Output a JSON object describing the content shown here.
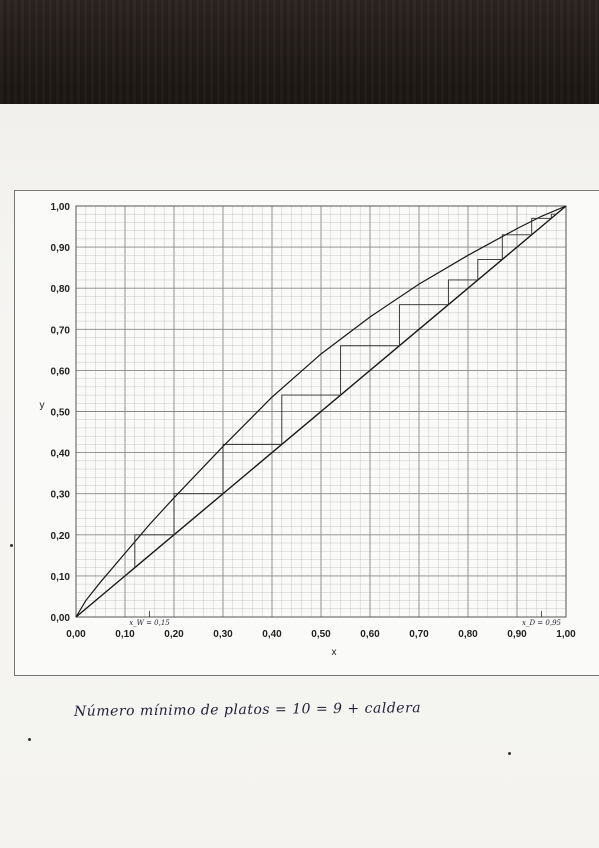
{
  "chart_data": {
    "type": "line",
    "xlabel": "x",
    "ylabel": "y",
    "xlim": [
      0,
      1
    ],
    "ylim": [
      0,
      1
    ],
    "grid": true,
    "x_ticks": [
      "0,00",
      "0,10",
      "0,20",
      "0,30",
      "0,40",
      "0,50",
      "0,60",
      "0,70",
      "0,80",
      "0,90",
      "1,00"
    ],
    "y_ticks": [
      "0,00",
      "0,10",
      "0,20",
      "0,30",
      "0,40",
      "0,50",
      "0,60",
      "0,70",
      "0,80",
      "0,90",
      "1,00"
    ],
    "series": [
      {
        "name": "",
        "kind": "equilibrium",
        "x": [
          0,
          0.02,
          0.05,
          0.1,
          0.15,
          0.2,
          0.3,
          0.4,
          0.5,
          0.6,
          0.7,
          0.8,
          0.9,
          0.95,
          1.0
        ],
        "y": [
          0,
          0.04,
          0.085,
          0.155,
          0.225,
          0.29,
          0.415,
          0.535,
          0.64,
          0.73,
          0.81,
          0.88,
          0.945,
          0.975,
          1.0
        ]
      },
      {
        "name": "",
        "kind": "diagonal",
        "x": [
          0,
          1
        ],
        "y": [
          0,
          1
        ]
      },
      {
        "name": "",
        "kind": "steps",
        "x": [
          0.98,
          0.97,
          0.97,
          0.93,
          0.93,
          0.87,
          0.87,
          0.82,
          0.82,
          0.76,
          0.76,
          0.66,
          0.66,
          0.54,
          0.54,
          0.42,
          0.42,
          0.3,
          0.3,
          0.2,
          0.2,
          0.12,
          0.12
        ],
        "y": [
          0.98,
          0.98,
          0.97,
          0.97,
          0.93,
          0.93,
          0.87,
          0.87,
          0.82,
          0.82,
          0.76,
          0.76,
          0.66,
          0.66,
          0.54,
          0.54,
          0.42,
          0.42,
          0.3,
          0.3,
          0.2,
          0.2,
          0.12
        ]
      }
    ],
    "annotations": [
      {
        "text": "x_W = 0,15",
        "x": 0.15
      },
      {
        "text": "x_D = 0,95",
        "x": 0.95
      }
    ]
  },
  "note": "Número mínimo de platos = 10 = 9 + caldera"
}
